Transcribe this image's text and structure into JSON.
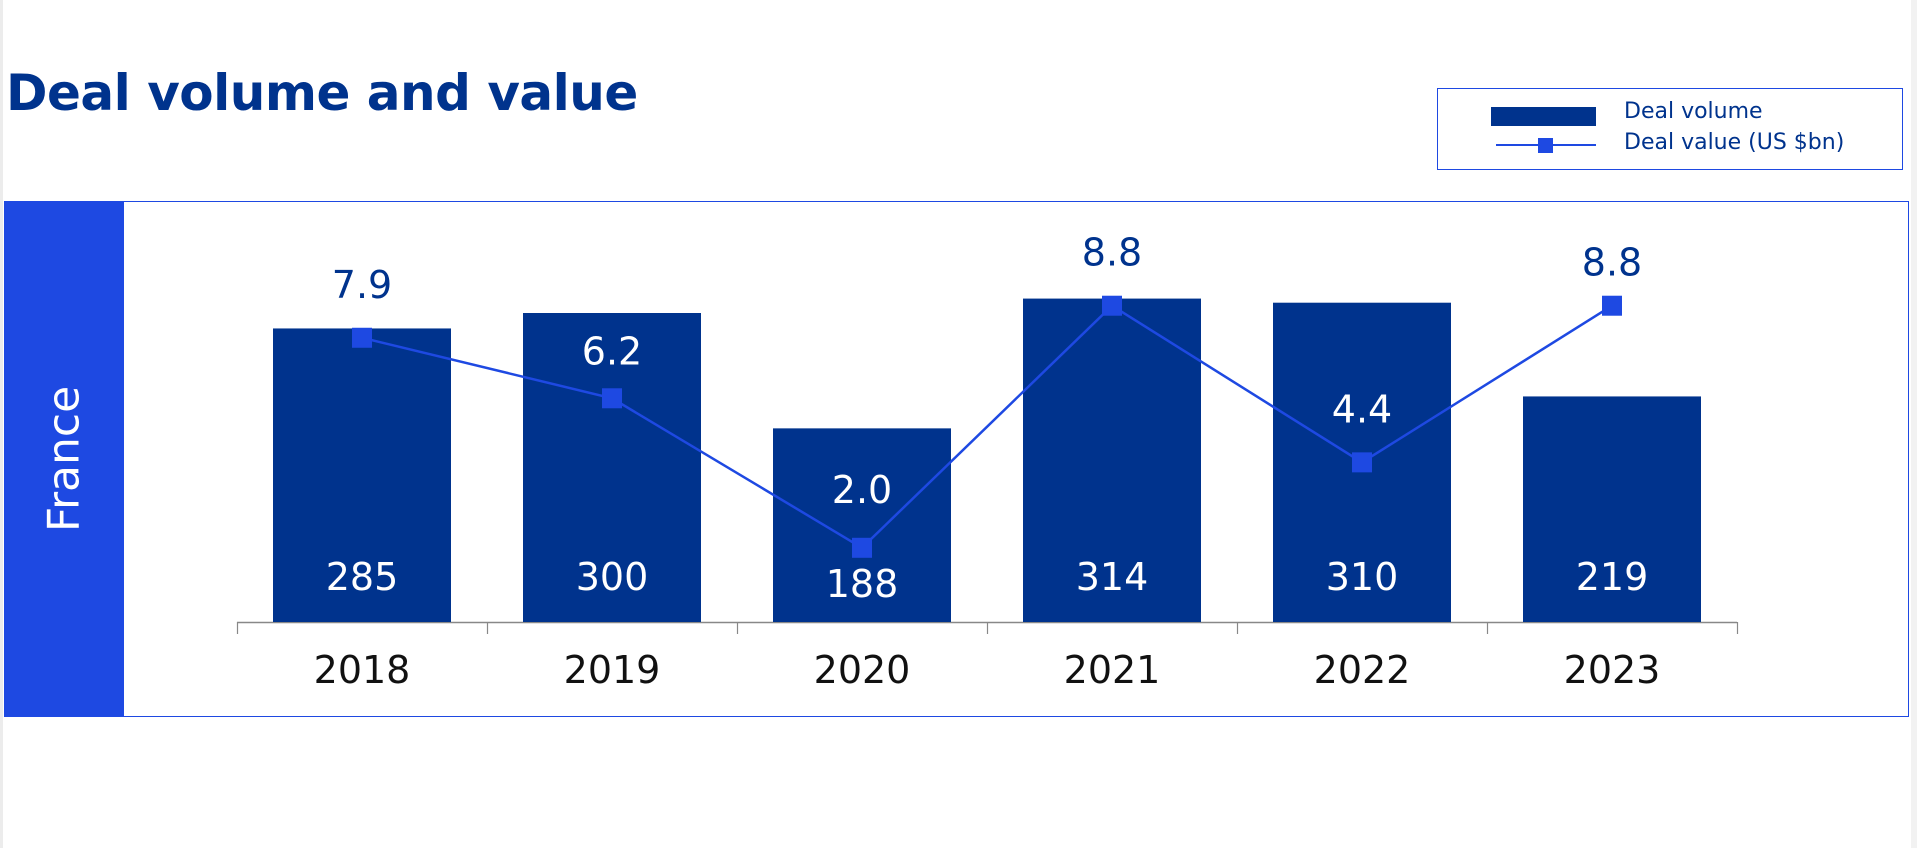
{
  "title": "Deal volume and value",
  "region_label": "France",
  "legend": {
    "items": [
      {
        "label": "Deal volume",
        "type": "bar"
      },
      {
        "label": "Deal value (US $bn)",
        "type": "line-marker"
      }
    ]
  },
  "colors": {
    "bar": "#00338d",
    "line": "#1e49e2",
    "sidebar": "#1e49e2",
    "frame": "#1e49e2",
    "title": "#00338d",
    "axis": "#888888"
  },
  "chart_data": {
    "type": "bar",
    "title": "Deal volume and value",
    "subtitle": "France",
    "categories": [
      "2018",
      "2019",
      "2020",
      "2021",
      "2022",
      "2023"
    ],
    "series": [
      {
        "name": "Deal volume",
        "type": "bar",
        "axis": "primary",
        "values": [
          285,
          300,
          188,
          314,
          310,
          219
        ],
        "labels": [
          "285",
          "300",
          "188",
          "314",
          "310",
          "219"
        ]
      },
      {
        "name": "Deal value (US $bn)",
        "type": "line",
        "axis": "secondary",
        "marker": "square",
        "values": [
          7.9,
          6.2,
          2.0,
          8.8,
          4.4,
          8.8
        ],
        "labels": [
          "7.9",
          "6.2",
          "2.0",
          "8.8",
          "4.4",
          "8.8"
        ]
      }
    ],
    "xlabel": "",
    "ylabel": "",
    "ylim": [
      0,
      340
    ],
    "y2lim": [
      0,
      9.5
    ],
    "grid": false,
    "y_axis_visible": false,
    "legend_position": "top-right"
  }
}
